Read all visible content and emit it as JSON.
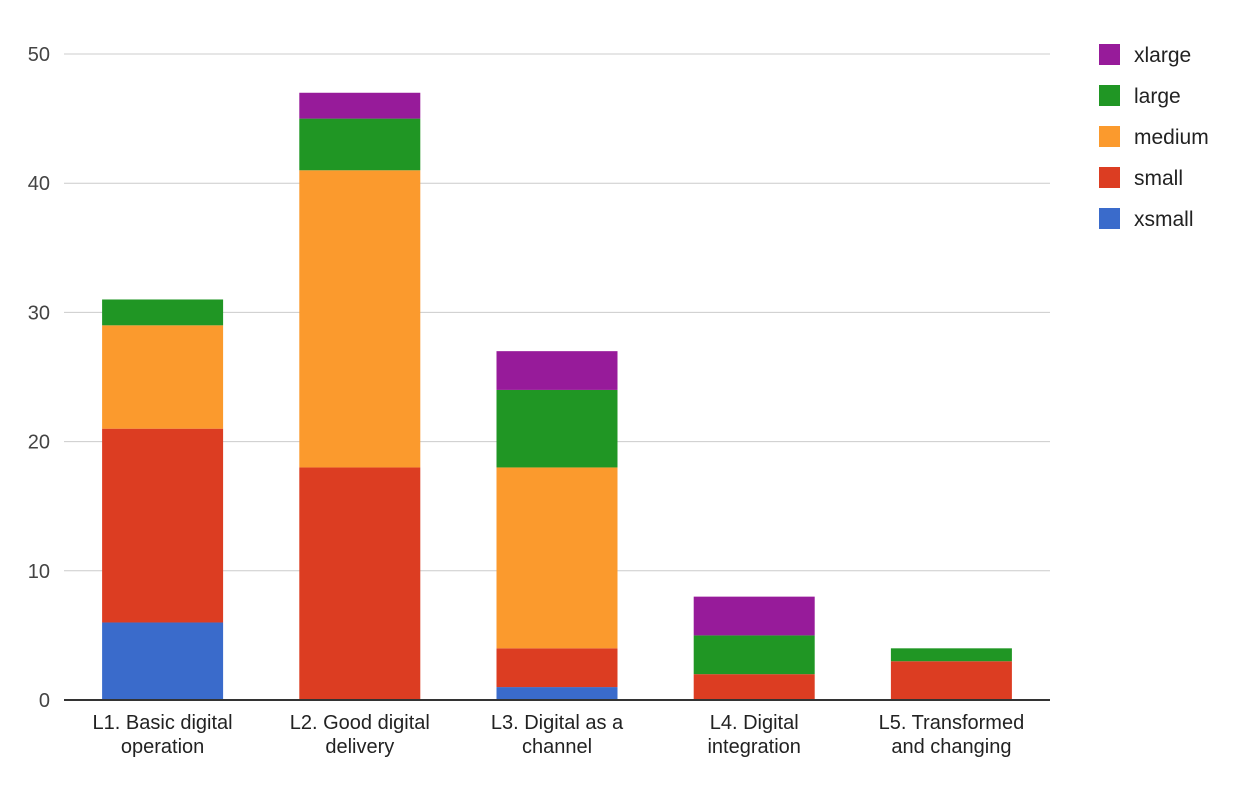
{
  "chart_data": {
    "type": "bar",
    "stacked": true,
    "title": "",
    "xlabel": "",
    "ylabel": "",
    "ylim": [
      0,
      50
    ],
    "yticks": [
      0,
      10,
      20,
      30,
      40,
      50
    ],
    "grid": true,
    "legend_position": "right",
    "categories": [
      [
        "L1. Basic digital",
        "operation"
      ],
      [
        "L2. Good digital",
        "delivery"
      ],
      [
        "L3. Digital as a",
        "channel"
      ],
      [
        "L4. Digital",
        "integration"
      ],
      [
        "L5. Transformed",
        "and changing"
      ]
    ],
    "series": [
      {
        "name": "xsmall",
        "color": "#3a6bcb",
        "values": [
          6,
          0,
          1,
          0,
          0
        ]
      },
      {
        "name": "small",
        "color": "#dc3d22",
        "values": [
          15,
          18,
          3,
          2,
          3
        ]
      },
      {
        "name": "medium",
        "color": "#fb9a2d",
        "values": [
          8,
          23,
          14,
          0,
          0
        ]
      },
      {
        "name": "large",
        "color": "#209624",
        "values": [
          2,
          4,
          6,
          3,
          1
        ]
      },
      {
        "name": "xlarge",
        "color": "#971b9a",
        "values": [
          0,
          2,
          3,
          3,
          0
        ]
      }
    ],
    "legend_order": [
      "xlarge",
      "large",
      "medium",
      "small",
      "xsmall"
    ],
    "colors": {
      "grid": "#cccccc",
      "axis": "#333333"
    }
  }
}
